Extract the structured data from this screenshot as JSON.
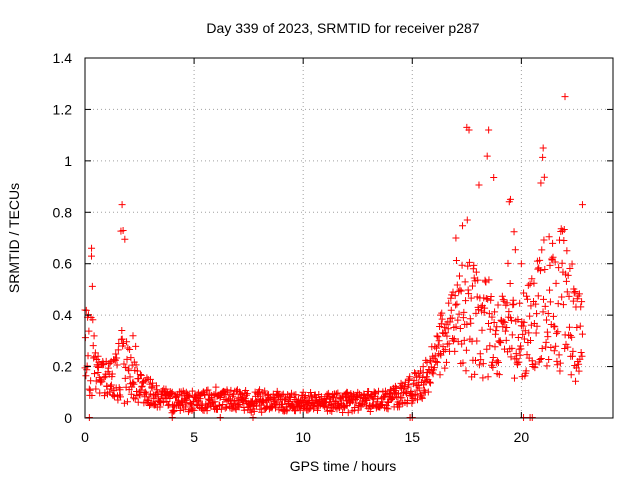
{
  "chart_data": {
    "type": "scatter",
    "title": "Day 339 of 2023, SRMTID for receiver p287",
    "xlabel": "GPS time / hours",
    "ylabel": "SRMTID / TECUs",
    "xlim": [
      0,
      24.2
    ],
    "ylim": [
      0,
      1.4
    ],
    "xticks": [
      0,
      5,
      10,
      15,
      20
    ],
    "yticks": [
      0,
      0.2,
      0.4,
      0.6,
      0.8,
      1,
      1.2,
      1.4
    ],
    "grid": true,
    "marker": "plus",
    "color": "#ff0000",
    "series": [
      {
        "name": "SRMTID",
        "envelope": [
          {
            "x": 0.0,
            "base": 0.3,
            "spread": 0.12,
            "peak": 0.42
          },
          {
            "x": 0.3,
            "base": 0.25,
            "spread": 0.2,
            "peak": 0.66
          },
          {
            "x": 0.6,
            "base": 0.16,
            "spread": 0.08,
            "peak": 0.24
          },
          {
            "x": 1.2,
            "base": 0.15,
            "spread": 0.06,
            "peak": 0.22
          },
          {
            "x": 1.7,
            "base": 0.2,
            "spread": 0.15,
            "peak": 0.83
          },
          {
            "x": 2.2,
            "base": 0.15,
            "spread": 0.08,
            "peak": 0.32
          },
          {
            "x": 3.0,
            "base": 0.09,
            "spread": 0.05,
            "peak": 0.15
          },
          {
            "x": 4.0,
            "base": 0.06,
            "spread": 0.04,
            "peak": 0.1
          },
          {
            "x": 6.0,
            "base": 0.07,
            "spread": 0.04,
            "peak": 0.12
          },
          {
            "x": 8.0,
            "base": 0.06,
            "spread": 0.04,
            "peak": 0.11
          },
          {
            "x": 10.0,
            "base": 0.06,
            "spread": 0.03,
            "peak": 0.1
          },
          {
            "x": 12.0,
            "base": 0.06,
            "spread": 0.04,
            "peak": 0.1
          },
          {
            "x": 14.0,
            "base": 0.07,
            "spread": 0.04,
            "peak": 0.11
          },
          {
            "x": 15.5,
            "base": 0.13,
            "spread": 0.06,
            "peak": 0.2
          },
          {
            "x": 16.3,
            "base": 0.27,
            "spread": 0.1,
            "peak": 0.4
          },
          {
            "x": 17.0,
            "base": 0.4,
            "spread": 0.15,
            "peak": 0.7
          },
          {
            "x": 17.5,
            "base": 0.4,
            "spread": 0.25,
            "peak": 1.13
          },
          {
            "x": 18.5,
            "base": 0.35,
            "spread": 0.2,
            "peak": 1.12
          },
          {
            "x": 19.5,
            "base": 0.3,
            "spread": 0.15,
            "peak": 0.85
          },
          {
            "x": 20.0,
            "base": 0.3,
            "spread": 0.15,
            "peak": 0.6
          },
          {
            "x": 21.0,
            "base": 0.45,
            "spread": 0.25,
            "peak": 1.05
          },
          {
            "x": 22.0,
            "base": 0.45,
            "spread": 0.3,
            "peak": 1.25
          },
          {
            "x": 22.8,
            "base": 0.3,
            "spread": 0.18,
            "peak": 0.83
          }
        ],
        "zero_points_x": [
          0.2,
          4.0,
          6.2,
          7.7,
          14.9,
          15.0,
          20.1,
          20.4,
          20.5
        ]
      }
    ]
  }
}
